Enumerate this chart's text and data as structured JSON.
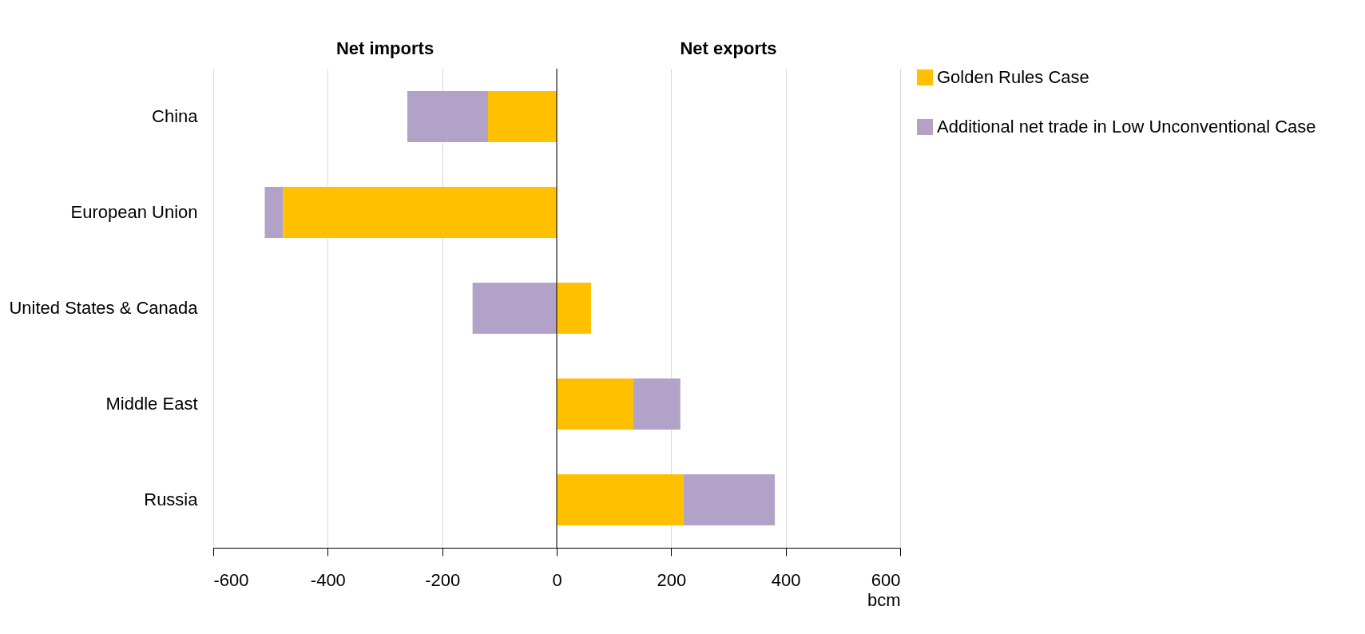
{
  "chart_data": {
    "type": "bar",
    "orientation": "horizontal",
    "stacked": true,
    "categories": [
      "China",
      "European Union",
      "United States & Canada",
      "Middle East",
      "Russia"
    ],
    "series": [
      {
        "name": "Golden Rules Case",
        "color": "#ffc000",
        "values": [
          -120,
          -478,
          60,
          134,
          221
        ]
      },
      {
        "name": "Additional net trade in Low Unconventional Case",
        "color": "#b3a2c7",
        "values": [
          -141,
          -32,
          -147,
          82,
          160
        ]
      }
    ],
    "xlim": [
      -600,
      600
    ],
    "xticks": [
      -600,
      -400,
      -200,
      0,
      200,
      400,
      600
    ],
    "xlabel": "bcm",
    "grid": "x",
    "legend": "top right",
    "annotations": [
      "Net imports",
      "Net exports"
    ]
  }
}
